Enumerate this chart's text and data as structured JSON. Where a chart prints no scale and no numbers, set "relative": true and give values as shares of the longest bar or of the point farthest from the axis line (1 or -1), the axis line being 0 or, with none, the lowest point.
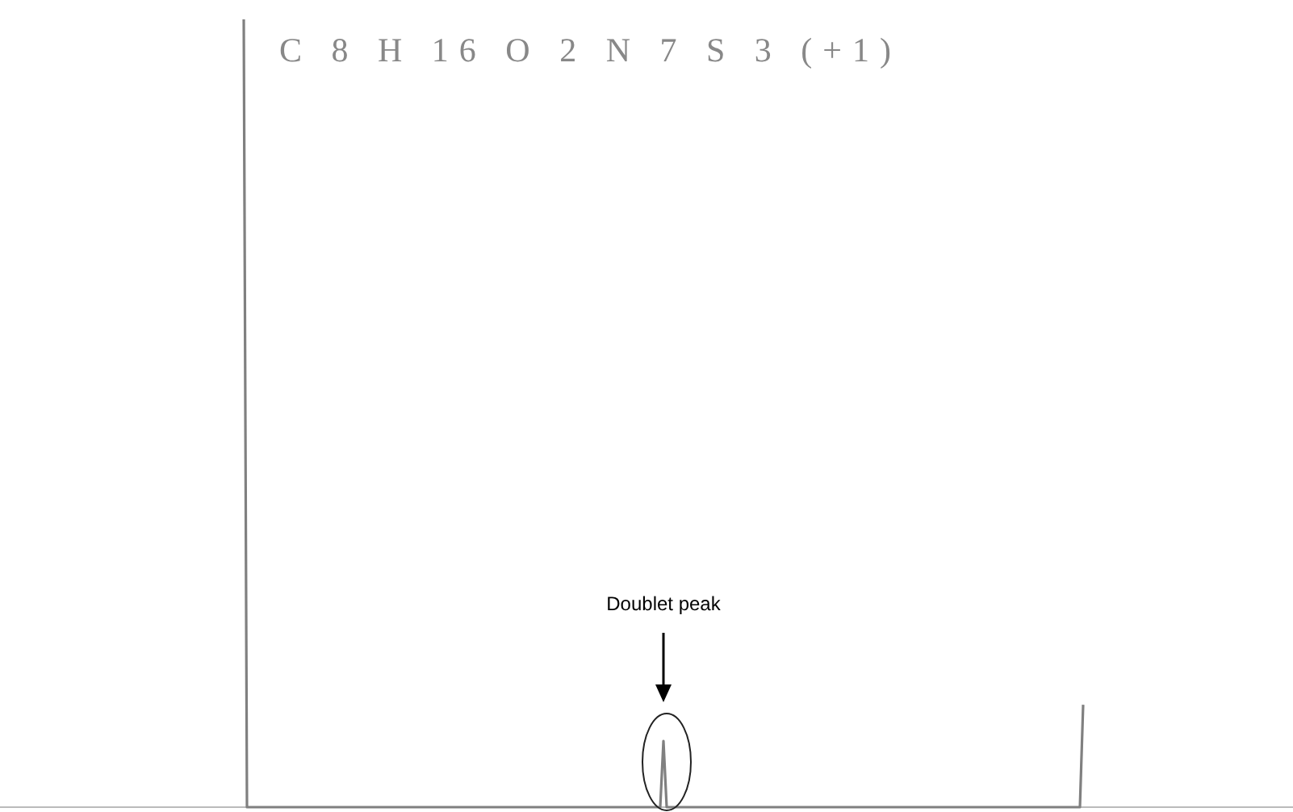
{
  "chart_data": {
    "type": "line",
    "title": "C 8 H 16 O 2 N 7 S 3 (+1)",
    "relative": true,
    "categories": [
      null,
      null,
      null,
      null,
      null,
      null,
      null,
      null,
      null,
      null,
      null,
      null,
      null,
      null,
      null,
      null,
      null,
      null,
      null,
      null,
      null,
      null,
      null,
      null,
      null,
      null,
      null,
      null,
      null,
      null,
      null,
      null,
      null,
      null,
      null,
      null,
      null,
      null,
      null,
      null,
      null,
      null,
      null,
      null,
      null,
      null,
      null,
      null,
      null,
      null,
      null,
      null,
      null,
      null,
      null,
      null,
      null,
      null,
      null,
      null,
      null,
      null,
      null,
      null,
      null,
      null,
      null,
      null,
      null,
      null,
      null,
      null,
      null,
      null,
      null,
      null,
      null,
      null,
      null,
      null,
      null,
      null,
      null,
      null,
      null,
      null,
      null,
      null,
      null,
      null,
      null,
      null,
      null,
      null,
      null,
      null,
      null,
      null,
      null,
      null,
      null,
      null,
      null,
      null,
      null,
      null,
      null,
      null,
      null,
      null,
      null,
      null,
      null,
      null,
      null,
      null,
      null,
      null,
      null,
      null,
      null,
      null,
      null,
      null,
      null,
      null,
      null,
      null,
      null,
      null,
      null,
      null,
      null,
      null,
      null,
      null,
      null,
      null,
      null,
      null,
      null,
      null,
      null,
      null,
      null,
      null,
      null,
      null,
      null,
      null,
      null,
      null,
      null,
      null,
      null,
      null,
      null,
      null,
      null,
      null,
      null,
      null,
      null,
      null,
      null,
      null,
      null,
      null,
      null,
      null,
      null,
      null,
      null,
      null,
      null,
      null,
      null,
      null,
      null,
      null,
      null,
      null,
      null,
      null,
      null,
      null,
      null,
      null,
      null,
      null,
      null,
      null,
      null,
      null,
      null,
      null,
      null,
      null,
      null,
      null,
      null,
      null,
      null,
      null,
      null,
      null,
      null,
      null,
      null,
      null,
      null,
      null,
      null,
      null,
      null,
      null,
      null,
      null,
      null,
      null,
      null,
      null,
      null,
      null,
      null,
      null,
      null,
      null,
      null,
      null,
      null,
      null,
      null,
      null,
      null,
      null,
      null,
      null,
      null,
      null,
      null,
      null,
      null,
      null,
      null,
      null,
      null,
      null,
      null,
      null,
      null,
      null,
      null,
      null,
      null,
      null,
      null,
      null,
      null,
      null,
      null
    ],
    "values": [
      1,
      0,
      0,
      0,
      0,
      0,
      0,
      0,
      0,
      0,
      0,
      0,
      0,
      0,
      0,
      0,
      0,
      0,
      0,
      0,
      0,
      0,
      0,
      0,
      0,
      0,
      0,
      0,
      0,
      0,
      0,
      0,
      0,
      0,
      0,
      0,
      0,
      0,
      0,
      0,
      0,
      0,
      0,
      0,
      0,
      0,
      0,
      0,
      0,
      0,
      0,
      0,
      0,
      0,
      0,
      0,
      0,
      0,
      0,
      0,
      0,
      0,
      0,
      0,
      0,
      0,
      0,
      0,
      0,
      0,
      0,
      0,
      0,
      0,
      0,
      0,
      0,
      0,
      0,
      0,
      0,
      0,
      0,
      0,
      0,
      0,
      0,
      0,
      0,
      0,
      0,
      0,
      0,
      0,
      0,
      0,
      0,
      0,
      0,
      0,
      0,
      0,
      0,
      0,
      0,
      0,
      0,
      0,
      0,
      0,
      0,
      0,
      0,
      0,
      0,
      0,
      0,
      0,
      0,
      0,
      0,
      0,
      0,
      0,
      0,
      0,
      0,
      0,
      0,
      0,
      0.084,
      0,
      0,
      0,
      0,
      0,
      0,
      0,
      0,
      0,
      0,
      0,
      0,
      0,
      0,
      0,
      0,
      0,
      0,
      0,
      0,
      0,
      0,
      0,
      0,
      0,
      0,
      0,
      0,
      0,
      0,
      0,
      0,
      0,
      0,
      0,
      0,
      0,
      0,
      0,
      0,
      0,
      0,
      0,
      0,
      0,
      0,
      0,
      0,
      0,
      0,
      0,
      0,
      0,
      0,
      0,
      0,
      0,
      0,
      0,
      0,
      0,
      0,
      0,
      0,
      0,
      0,
      0,
      0,
      0,
      0,
      0,
      0,
      0,
      0,
      0,
      0,
      0,
      0,
      0,
      0,
      0,
      0,
      0,
      0,
      0,
      0,
      0,
      0,
      0,
      0,
      0,
      0,
      0,
      0,
      0,
      0,
      0,
      0,
      0,
      0,
      0,
      0,
      0,
      0,
      0,
      0,
      0,
      0,
      0,
      0,
      0,
      0,
      0,
      0,
      0,
      0,
      0,
      0,
      0,
      0,
      0,
      0,
      0,
      0,
      0,
      0,
      0,
      0,
      0,
      0.13
    ],
    "color": "#808080",
    "annotations": [
      "Doublet peak"
    ]
  }
}
